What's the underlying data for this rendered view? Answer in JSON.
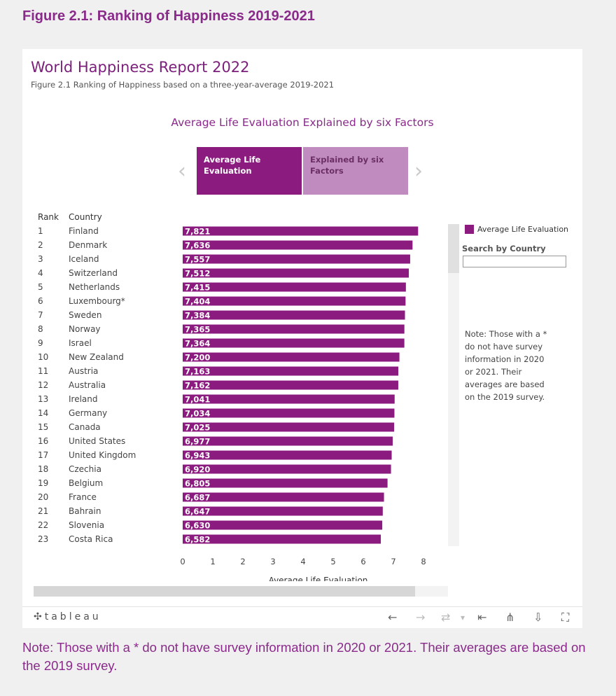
{
  "figure_title": "Figure 2.1: Ranking of Happiness 2019-2021",
  "report": {
    "title": "World Happiness Report 2022",
    "subtitle": "Figure 2.1 Ranking of Happiness based on a three-year-average 2019-2021",
    "section_title": "Average Life Evaluation Explained by six Factors"
  },
  "tabs": [
    {
      "label": "Average Life Evaluation",
      "active": true
    },
    {
      "label": "Explained by six Factors",
      "active": false
    }
  ],
  "nav": {
    "prev": "‹",
    "next": "›"
  },
  "table_headers": {
    "rank": "Rank",
    "country": "Country"
  },
  "legend": {
    "label": "Average Life Evaluation",
    "color": "#8c1b80"
  },
  "search": {
    "label": "Search by Country",
    "value": ""
  },
  "side_note": "Note: Those with a * do not have survey information in 2020 or 2021. Their averages are based on the 2019 survey.",
  "bottom_note": "Note: Those with a * do not have survey information in 2020 or 2021. Their averages are based on the 2019 survey.",
  "toolbar": {
    "logo": "tableau",
    "undo_icon": "←",
    "redo_icon": "→",
    "revert_icon": "⇄",
    "dropdown_icon": "▾",
    "first_icon": "⇤",
    "share_icon": "⋔",
    "download_icon": "⇩",
    "fullscreen_icon": "⛶"
  },
  "chart_data": {
    "type": "bar",
    "orientation": "horizontal",
    "xlabel": "Average Life Evaluation",
    "xlim": [
      0,
      9
    ],
    "xticks": [
      "0",
      "1",
      "2",
      "3",
      "4",
      "5",
      "6",
      "7",
      "8",
      "9"
    ],
    "bar_color": "#8c1b80",
    "ranks": [
      "1",
      "2",
      "3",
      "4",
      "5",
      "6",
      "7",
      "8",
      "9",
      "10",
      "11",
      "12",
      "13",
      "14",
      "15",
      "16",
      "17",
      "18",
      "19",
      "20",
      "21",
      "22",
      "23"
    ],
    "categories": [
      "Finland",
      "Denmark",
      "Iceland",
      "Switzerland",
      "Netherlands",
      "Luxembourg*",
      "Sweden",
      "Norway",
      "Israel",
      "New Zealand",
      "Austria",
      "Australia",
      "Ireland",
      "Germany",
      "Canada",
      "United States",
      "United Kingdom",
      "Czechia",
      "Belgium",
      "France",
      "Bahrain",
      "Slovenia",
      "Costa Rica"
    ],
    "values": [
      7.821,
      7.636,
      7.557,
      7.512,
      7.415,
      7.404,
      7.384,
      7.365,
      7.364,
      7.2,
      7.163,
      7.162,
      7.041,
      7.034,
      7.025,
      6.977,
      6.943,
      6.92,
      6.805,
      6.687,
      6.647,
      6.63,
      6.582
    ],
    "value_labels": [
      "7,821",
      "7,636",
      "7,557",
      "7,512",
      "7,415",
      "7,404",
      "7,384",
      "7,365",
      "7,364",
      "7,200",
      "7,163",
      "7,162",
      "7,041",
      "7,034",
      "7,025",
      "6,977",
      "6,943",
      "6,920",
      "6,805",
      "6,687",
      "6,647",
      "6,630",
      "6,582"
    ]
  }
}
